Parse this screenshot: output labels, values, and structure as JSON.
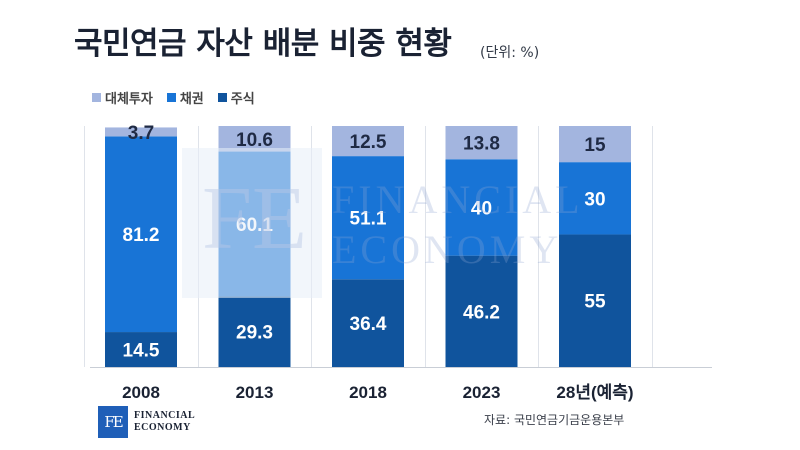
{
  "header": {
    "title": "국민연금 자산 배분 비중 현황",
    "unit": "(단위: %)"
  },
  "footer": {
    "logo_mark": "FE",
    "logo_line1": "FINANCIAL",
    "logo_line2": "ECONOMY",
    "source": "자료: 국민연금기금운용본부"
  },
  "watermark": {
    "line1": "FINANCIAL",
    "line2": "ECONOMY"
  },
  "colors": {
    "대체투자": "#a3b5df",
    "채권": "#1874d6",
    "주식": "#10549d"
  },
  "chart_data": {
    "type": "bar",
    "stacked": true,
    "categories": [
      "2008",
      "2013",
      "2018",
      "2023",
      "28년(예측)"
    ],
    "series": [
      {
        "name": "대체투자",
        "values": [
          3.7,
          10.6,
          12.5,
          13.8,
          15
        ]
      },
      {
        "name": "채권",
        "values": [
          81.2,
          60.1,
          51.1,
          40,
          30
        ]
      },
      {
        "name": "주식",
        "values": [
          14.5,
          29.3,
          36.4,
          46.2,
          55
        ]
      }
    ],
    "stack_order_bottom_to_top": [
      "주식",
      "채권",
      "대체투자"
    ],
    "legend_position": "top-left",
    "grid": "vertical",
    "ylim": [
      0,
      100
    ],
    "title": "국민연금 자산 배분 비중 현황",
    "xlabel": "",
    "ylabel": ""
  }
}
